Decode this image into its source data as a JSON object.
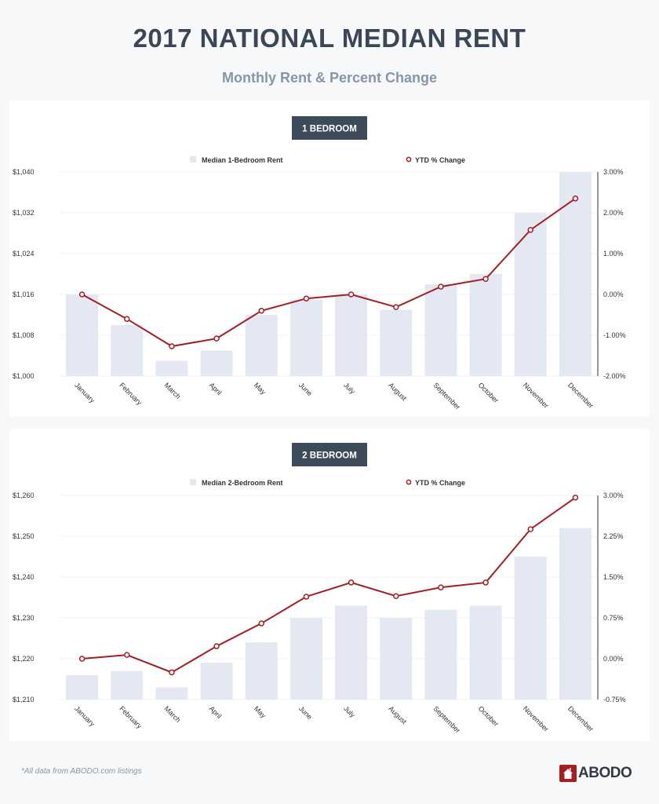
{
  "header": {
    "title": "2017 NATIONAL MEDIAN RENT",
    "subtitle": "Monthly Rent & Percent Change"
  },
  "footer": {
    "note": "*All data from ABODO.com listings",
    "logo": "ABODO"
  },
  "colors": {
    "bar": "#e4e8f2",
    "line": "#a61e22",
    "badge": "#3d4a5a"
  },
  "chart_data": [
    {
      "type": "bar+line",
      "title": "1 BEDROOM",
      "categories": [
        "January",
        "February",
        "March",
        "April",
        "May",
        "June",
        "July",
        "August",
        "September",
        "October",
        "November",
        "December"
      ],
      "series": [
        {
          "name": "Median 1-Bedroom Rent",
          "type": "bar",
          "axis": "left",
          "values": [
            1016,
            1010,
            1003,
            1005,
            1012,
            1015,
            1016,
            1013,
            1018,
            1020,
            1032,
            1040
          ]
        },
        {
          "name": "YTD % Change",
          "type": "line",
          "axis": "right",
          "values": [
            0.0,
            -0.6,
            -1.27,
            -1.08,
            -0.4,
            -0.1,
            0.0,
            -0.31,
            0.19,
            0.38,
            1.58,
            2.35
          ]
        }
      ],
      "ylim": [
        1000,
        1040
      ],
      "yticks": [
        "$1,000",
        "$1,008",
        "$1,016",
        "$1,024",
        "$1,032",
        "$1,040"
      ],
      "y2lim": [
        -2,
        3
      ],
      "y2ticks": [
        "-2.00%",
        "-1.00%",
        "0.00%",
        "1.00%",
        "2.00%",
        "3.00%"
      ],
      "grid": true,
      "legend": "top-center"
    },
    {
      "type": "bar+line",
      "title": "2 BEDROOM",
      "categories": [
        "January",
        "February",
        "March",
        "April",
        "May",
        "June",
        "July",
        "August",
        "September",
        "October",
        "November",
        "December"
      ],
      "series": [
        {
          "name": "Median 2-Bedroom Rent",
          "type": "bar",
          "axis": "left",
          "values": [
            1216,
            1217,
            1213,
            1219,
            1224,
            1230,
            1233,
            1230,
            1232,
            1233,
            1245,
            1252
          ]
        },
        {
          "name": "YTD % Change",
          "type": "line",
          "axis": "right",
          "values": [
            0.0,
            0.07,
            -0.25,
            0.23,
            0.65,
            1.14,
            1.4,
            1.15,
            1.31,
            1.4,
            2.38,
            2.96
          ]
        }
      ],
      "ylim": [
        1210,
        1260
      ],
      "yticks": [
        "$1,210",
        "$1,220",
        "$1,230",
        "$1,240",
        "$1,250",
        "$1,260"
      ],
      "y2lim": [
        -0.75,
        3
      ],
      "y2ticks": [
        "-0.75%",
        "0.00%",
        "0.75%",
        "1.50%",
        "2.25%",
        "3.00%"
      ],
      "grid": true,
      "legend": "top-center"
    }
  ]
}
